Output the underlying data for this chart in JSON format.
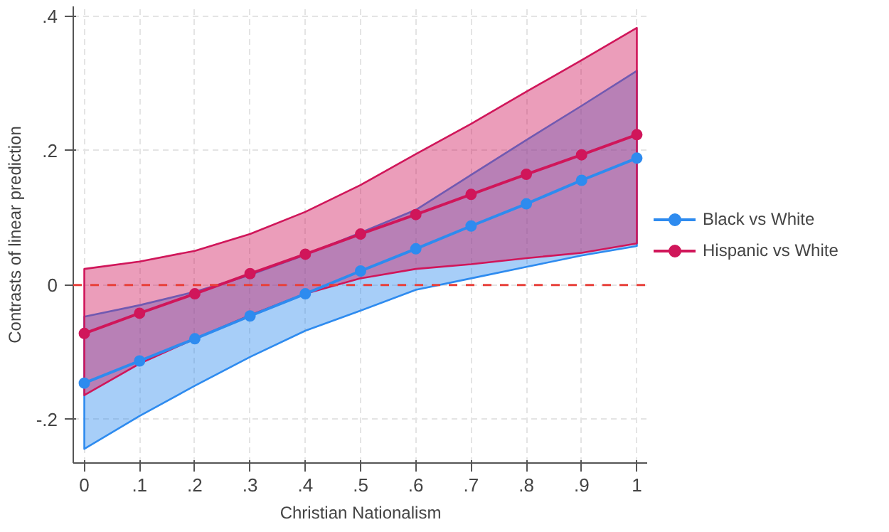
{
  "chart_data": {
    "type": "line",
    "xlabel": "Christian Nationalism",
    "ylabel": "Contrasts of linear prediction",
    "x": [
      0,
      0.1,
      0.2,
      0.3,
      0.4,
      0.5,
      0.6,
      0.7,
      0.8,
      0.9,
      1
    ],
    "series": [
      {
        "name": "Black vs White",
        "color": "#2e8bef",
        "values": [
          -0.146,
          -0.113,
          -0.08,
          -0.046,
          -0.013,
          0.021,
          0.054,
          0.088,
          0.121,
          0.156,
          0.189
        ],
        "lower": [
          -0.244,
          -0.195,
          -0.15,
          -0.107,
          -0.068,
          -0.038,
          -0.007,
          0.01,
          0.027,
          0.044,
          0.058
        ],
        "upper": [
          -0.047,
          -0.03,
          -0.01,
          0.015,
          0.045,
          0.078,
          0.112,
          0.164,
          0.216,
          0.267,
          0.319
        ]
      },
      {
        "name": "Hispanic vs White",
        "color": "#d0165a",
        "values": [
          -0.072,
          -0.042,
          -0.013,
          0.017,
          0.046,
          0.076,
          0.105,
          0.135,
          0.165,
          0.194,
          0.224
        ],
        "lower": [
          -0.164,
          -0.117,
          -0.08,
          -0.045,
          -0.013,
          0.01,
          0.024,
          0.031,
          0.04,
          0.048,
          0.062
        ],
        "upper": [
          0.024,
          0.035,
          0.051,
          0.076,
          0.109,
          0.149,
          0.195,
          0.24,
          0.288,
          0.335,
          0.383
        ]
      }
    ],
    "xlim": [
      -0.02,
      1.02
    ],
    "ylim": [
      -0.265,
      0.415
    ],
    "xticks": [
      0,
      {
        "value": 0.1,
        "label": ".1"
      },
      {
        "value": 0.2,
        "label": ".2"
      },
      {
        "value": 0.3,
        "label": ".3"
      },
      {
        "value": 0.4,
        "label": ".4"
      },
      {
        "value": 0.5,
        "label": ".5"
      },
      {
        "value": 0.6,
        "label": ".6"
      },
      {
        "value": 0.7,
        "label": ".7"
      },
      {
        "value": 0.8,
        "label": ".8"
      },
      {
        "value": 0.9,
        "label": ".9"
      },
      1
    ],
    "yticks": [
      {
        "value": -0.2,
        "label": "-.2"
      },
      0,
      {
        "value": 0.2,
        "label": ".2"
      },
      {
        "value": 0.4,
        "label": ".4"
      }
    ],
    "ref_lines": [
      {
        "axis": "y",
        "value": 0,
        "color": "#e8403a",
        "line_style": "dashed"
      }
    ],
    "grid": true,
    "legend": "right",
    "marker": "circle",
    "line_style": "solid"
  }
}
